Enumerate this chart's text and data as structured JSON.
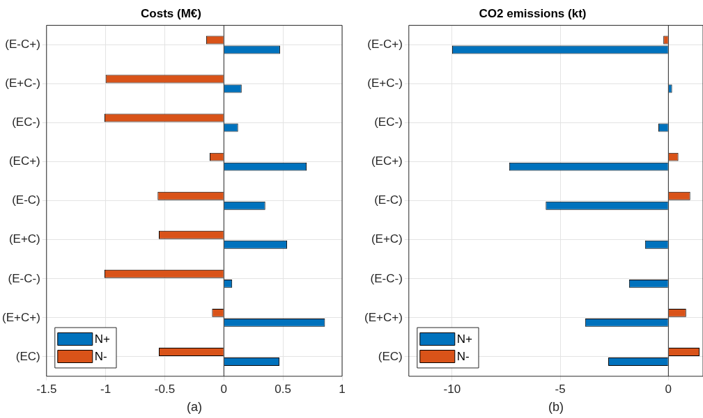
{
  "chart_data": [
    {
      "type": "bar",
      "orientation": "horizontal",
      "title": "Costs (M€)",
      "xlabel": "(a)",
      "categories": [
        "(E-C+)",
        "(E+C-)",
        "(EC-)",
        "(EC+)",
        "(E-C)",
        "(E+C)",
        "(E-C-)",
        "(E+C+)",
        "(EC)"
      ],
      "series": [
        {
          "name": "N+",
          "color": "#0072bd",
          "values": [
            0.475,
            0.15,
            0.12,
            0.7,
            0.35,
            0.535,
            0.07,
            0.855,
            0.47
          ]
        },
        {
          "name": "N-",
          "color": "#d95319",
          "values": [
            -0.15,
            -1.0,
            -1.01,
            -0.12,
            -0.56,
            -0.55,
            -1.01,
            -0.1,
            -0.55
          ]
        }
      ],
      "xlim": [
        -1.5,
        1
      ],
      "xticks": [
        -1.5,
        -1,
        -0.5,
        0,
        0.5,
        1
      ],
      "grid": true,
      "legend": "bottom left"
    },
    {
      "type": "bar",
      "orientation": "horizontal",
      "title": "CO2 emissions (kt)",
      "xlabel": "(b)",
      "categories": [
        "(E-C+)",
        "(E+C-)",
        "(EC-)",
        "(EC+)",
        "(E-C)",
        "(E+C)",
        "(E-C-)",
        "(E+C+)",
        "(EC)"
      ],
      "series": [
        {
          "name": "N+",
          "color": "#0072bd",
          "values": [
            -10.0,
            0.17,
            -0.46,
            -7.36,
            -5.67,
            -1.08,
            -1.82,
            -3.85,
            -2.78
          ]
        },
        {
          "name": "N-",
          "color": "#d95319",
          "values": [
            -0.23,
            null,
            null,
            0.46,
            1.01,
            null,
            null,
            0.82,
            1.44
          ]
        }
      ],
      "xlim": [
        -12,
        1.6
      ],
      "xticks": [
        -10,
        -5,
        0
      ],
      "grid": true,
      "legend": "bottom left"
    }
  ]
}
